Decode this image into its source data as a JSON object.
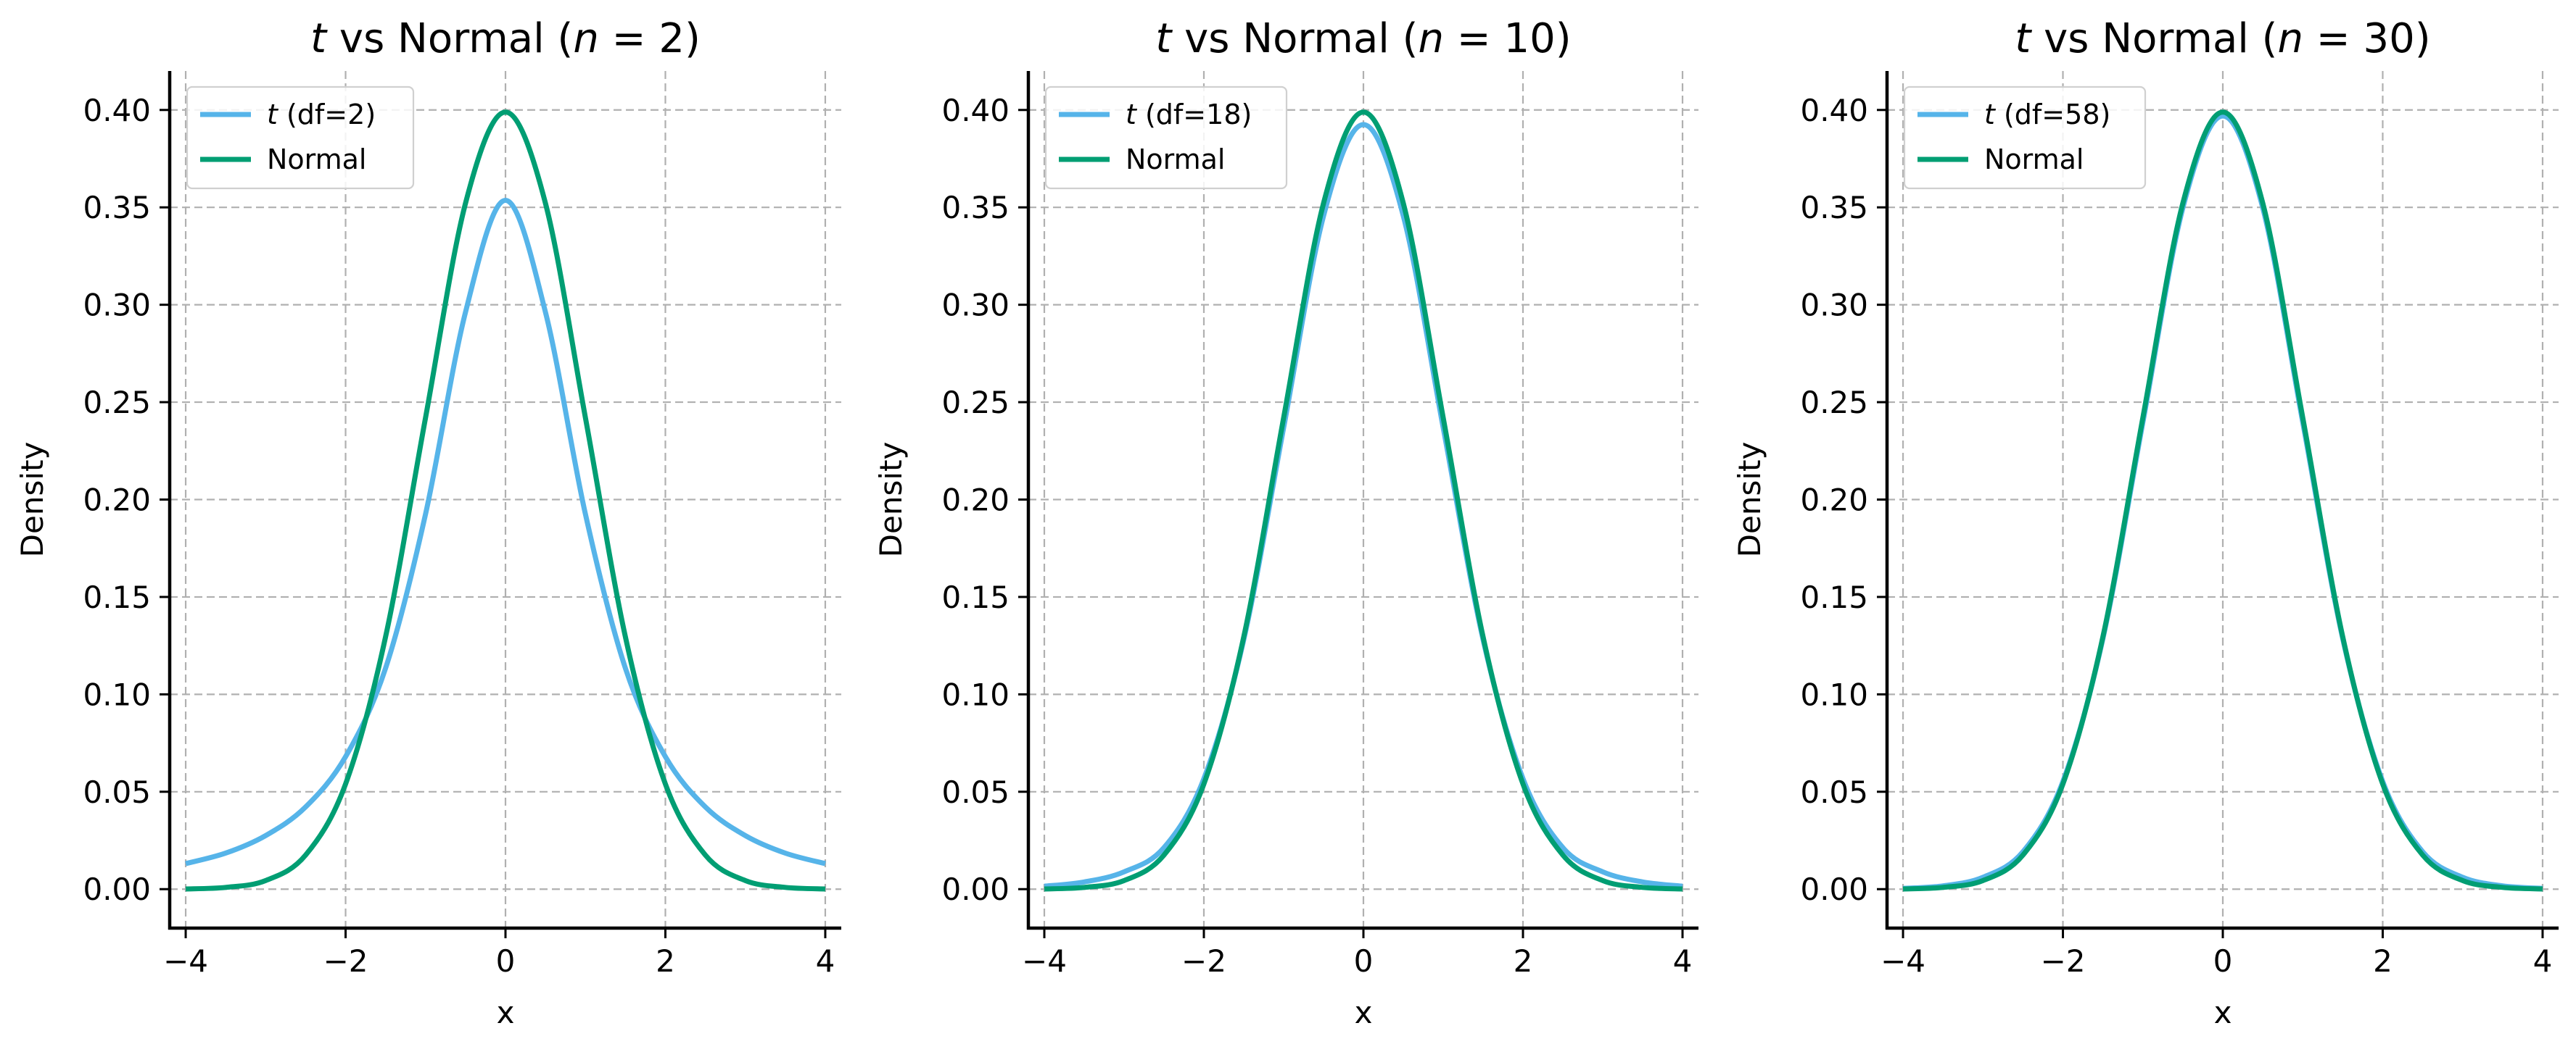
{
  "chart_data": [
    {
      "type": "line",
      "title_prefix": "t",
      "title_mid": " vs Normal (",
      "title_var": "n",
      "title_eq": " = ",
      "title_n": "2",
      "title_close": ")",
      "xlabel": "x",
      "ylabel": "Density",
      "xlim": [
        -4.2,
        4.2
      ],
      "ylim": [
        -0.02,
        0.42
      ],
      "xticks": [
        -4,
        -2,
        0,
        2,
        4
      ],
      "xtick_labels": [
        "−4",
        "−2",
        "0",
        "2",
        "4"
      ],
      "yticks": [
        0.0,
        0.05,
        0.1,
        0.15,
        0.2,
        0.25,
        0.3,
        0.35,
        0.4
      ],
      "ytick_labels": [
        "0.00",
        "0.05",
        "0.10",
        "0.15",
        "0.20",
        "0.25",
        "0.30",
        "0.35",
        "0.40"
      ],
      "grid": true,
      "legend_position": "top-left",
      "series": [
        {
          "name": "t (df=2)",
          "legend_italic": "t",
          "legend_rest": " (df=2)",
          "color": "#56b4e9",
          "x": [
            -4,
            -3.5,
            -3,
            -2.5,
            -2,
            -1.5,
            -1,
            -0.5,
            0,
            0.5,
            1,
            1.5,
            2,
            2.5,
            3,
            3.5,
            4
          ],
          "y": [
            0.0131,
            0.0185,
            0.0275,
            0.0422,
            0.068,
            0.1134,
            0.1925,
            0.2962,
            0.3536,
            0.2962,
            0.1925,
            0.1134,
            0.068,
            0.0422,
            0.0275,
            0.0185,
            0.0131
          ]
        },
        {
          "name": "Normal",
          "legend_italic": "",
          "legend_rest": "Normal",
          "color": "#009e73",
          "x": [
            -4,
            -3.5,
            -3,
            -2.5,
            -2,
            -1.5,
            -1,
            -0.5,
            0,
            0.5,
            1,
            1.5,
            2,
            2.5,
            3,
            3.5,
            4
          ],
          "y": [
            0.0001,
            0.0009,
            0.0044,
            0.0175,
            0.054,
            0.1295,
            0.242,
            0.3521,
            0.3989,
            0.3521,
            0.242,
            0.1295,
            0.054,
            0.0175,
            0.0044,
            0.0009,
            0.0001
          ]
        }
      ]
    },
    {
      "type": "line",
      "title_prefix": "t",
      "title_mid": " vs Normal (",
      "title_var": "n",
      "title_eq": " = ",
      "title_n": "10",
      "title_close": ")",
      "xlabel": "x",
      "ylabel": "Density",
      "xlim": [
        -4.2,
        4.2
      ],
      "ylim": [
        -0.02,
        0.42
      ],
      "xticks": [
        -4,
        -2,
        0,
        2,
        4
      ],
      "xtick_labels": [
        "−4",
        "−2",
        "0",
        "2",
        "4"
      ],
      "yticks": [
        0.0,
        0.05,
        0.1,
        0.15,
        0.2,
        0.25,
        0.3,
        0.35,
        0.4
      ],
      "ytick_labels": [
        "0.00",
        "0.05",
        "0.10",
        "0.15",
        "0.20",
        "0.25",
        "0.30",
        "0.35",
        "0.40"
      ],
      "grid": true,
      "legend_position": "top-left",
      "series": [
        {
          "name": "t (df=18)",
          "legend_italic": "t",
          "legend_rest": " (df=18)",
          "color": "#56b4e9",
          "x": [
            -4,
            -3.5,
            -3,
            -2.5,
            -2,
            -1.5,
            -1,
            -0.5,
            0,
            0.5,
            1,
            1.5,
            2,
            2.5,
            3,
            3.5,
            4
          ],
          "y": [
            0.0015,
            0.0037,
            0.0089,
            0.0213,
            0.0567,
            0.1281,
            0.2369,
            0.3456,
            0.3925,
            0.3456,
            0.2369,
            0.1281,
            0.0567,
            0.0213,
            0.0089,
            0.0037,
            0.0015
          ]
        },
        {
          "name": "Normal",
          "legend_italic": "",
          "legend_rest": "Normal",
          "color": "#009e73",
          "x": [
            -4,
            -3.5,
            -3,
            -2.5,
            -2,
            -1.5,
            -1,
            -0.5,
            0,
            0.5,
            1,
            1.5,
            2,
            2.5,
            3,
            3.5,
            4
          ],
          "y": [
            0.0001,
            0.0009,
            0.0044,
            0.0175,
            0.054,
            0.1295,
            0.242,
            0.3521,
            0.3989,
            0.3521,
            0.242,
            0.1295,
            0.054,
            0.0175,
            0.0044,
            0.0009,
            0.0001
          ]
        }
      ]
    },
    {
      "type": "line",
      "title_prefix": "t",
      "title_mid": " vs Normal (",
      "title_var": "n",
      "title_eq": " = ",
      "title_n": "30",
      "title_close": ")",
      "xlabel": "x",
      "ylabel": "Density",
      "xlim": [
        -4.2,
        4.2
      ],
      "ylim": [
        -0.02,
        0.42
      ],
      "xticks": [
        -4,
        -2,
        0,
        2,
        4
      ],
      "xtick_labels": [
        "−4",
        "−2",
        "0",
        "2",
        "4"
      ],
      "yticks": [
        0.0,
        0.05,
        0.1,
        0.15,
        0.2,
        0.25,
        0.3,
        0.35,
        0.4
      ],
      "ytick_labels": [
        "0.00",
        "0.05",
        "0.10",
        "0.15",
        "0.20",
        "0.25",
        "0.30",
        "0.35",
        "0.40"
      ],
      "grid": true,
      "legend_position": "top-left",
      "series": [
        {
          "name": "t (df=58)",
          "legend_italic": "t",
          "legend_rest": " (df=58)",
          "color": "#56b4e9",
          "x": [
            -4,
            -3.5,
            -3,
            -2.5,
            -2,
            -1.5,
            -1,
            -0.5,
            0,
            0.5,
            1,
            1.5,
            2,
            2.5,
            3,
            3.5,
            4
          ],
          "y": [
            0.0004,
            0.0017,
            0.0061,
            0.0192,
            0.0553,
            0.1286,
            0.2396,
            0.3497,
            0.3969,
            0.3497,
            0.2396,
            0.1286,
            0.0553,
            0.0192,
            0.0061,
            0.0017,
            0.0004
          ]
        },
        {
          "name": "Normal",
          "legend_italic": "",
          "legend_rest": "Normal",
          "color": "#009e73",
          "x": [
            -4,
            -3.5,
            -3,
            -2.5,
            -2,
            -1.5,
            -1,
            -0.5,
            0,
            0.5,
            1,
            1.5,
            2,
            2.5,
            3,
            3.5,
            4
          ],
          "y": [
            0.0001,
            0.0009,
            0.0044,
            0.0175,
            0.054,
            0.1295,
            0.242,
            0.3521,
            0.3989,
            0.3521,
            0.242,
            0.1295,
            0.054,
            0.0175,
            0.0044,
            0.0009,
            0.0001
          ]
        }
      ]
    }
  ]
}
